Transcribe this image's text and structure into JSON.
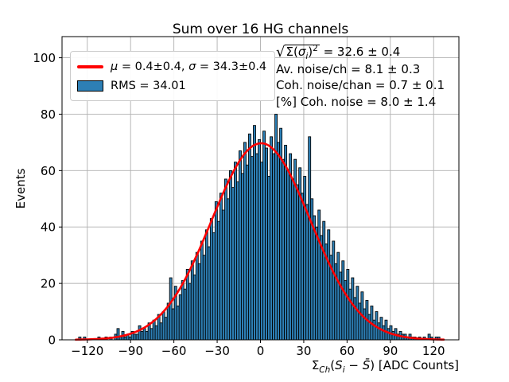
{
  "title": "Sum over 16 HG channels",
  "axes": {
    "ylabel": "Events",
    "xlabel": {
      "sigma": "Σ",
      "ch": "Ch",
      "open": "(",
      "s1": "S",
      "i": "i",
      "minus": " − ",
      "s2": "S̄",
      "rest": ") [ADC Counts]"
    },
    "xlabel_text": "Σ_Ch(S_i − S̄) [ADC Counts]"
  },
  "legend": {
    "fit": {
      "mu": "μ",
      "mu_val": " = 0.4±0.4, ",
      "sigma": "σ",
      "sigma_val": " = 34.3±0.4"
    },
    "fit_text": "μ = 0.4±0.4, σ = 34.3±0.4",
    "rms_label": "RMS = 34.01",
    "line_color": "#ff0000",
    "patch_color": "#2d7fb5"
  },
  "stats": {
    "sqrt": {
      "radical": "√",
      "body1": "Σ(",
      "sigma": "σ",
      "sub": "i",
      "close": ")",
      "sup": "2",
      "value": " = 32.6 ± 0.4"
    },
    "line1_text": "√Σ(σi)² = 32.6 ± 0.4",
    "line2": "Av. noise/ch = 8.1 ± 0.3",
    "line3": "Coh. noise/chan = 0.7 ± 0.1",
    "line4": "[%] Coh. noise = 8.0 ± 1.4"
  },
  "chart_data": {
    "type": "bar",
    "subtype": "histogram-with-gaussian-fit",
    "title": "Sum over 16 HG channels",
    "xlabel": "Σ_Ch(S_i − S̄) [ADC Counts]",
    "ylabel": "Events",
    "xlim": [
      -137.5,
      137.5
    ],
    "ylim": [
      0,
      107.5
    ],
    "xticks": [
      -120,
      -90,
      -60,
      -30,
      0,
      30,
      60,
      90,
      120
    ],
    "yticks": [
      0,
      20,
      40,
      60,
      80,
      100
    ],
    "grid": true,
    "grid_color": "#b0b0b0",
    "bar_color": "#2d7fb5",
    "bar_edge_color": "#000000",
    "curve_color": "#ff0000",
    "gauss_fit": {
      "amplitude": 69.7,
      "mu": 0.4,
      "sigma": 34.3
    },
    "fit_mu": "0.4±0.4",
    "fit_sigma": "34.3±0.4",
    "rms": 34.01,
    "bins": {
      "start": -126,
      "width": 1.658,
      "counts": [
        1,
        0,
        1,
        0,
        0,
        0,
        0,
        0,
        1,
        0,
        0,
        1,
        0,
        1,
        0,
        2,
        4,
        1,
        3,
        1,
        2,
        1,
        3,
        2,
        2,
        5,
        3,
        4,
        3,
        6,
        4,
        7,
        5,
        9,
        6,
        10,
        8,
        13,
        22,
        11,
        19,
        12,
        16,
        21,
        18,
        25,
        20,
        28,
        23,
        31,
        27,
        35,
        30,
        39,
        33,
        43,
        38,
        49,
        42,
        52,
        46,
        57,
        50,
        60,
        54,
        63,
        56,
        67,
        59,
        70,
        62,
        73,
        65,
        76,
        66,
        71,
        63,
        74,
        68,
        58,
        72,
        66,
        80,
        70,
        75,
        64,
        69,
        60,
        66,
        57,
        64,
        55,
        61,
        52,
        58,
        48,
        72,
        50,
        44,
        40,
        46,
        37,
        42,
        34,
        39,
        30,
        35,
        27,
        31,
        24,
        28,
        21,
        25,
        18,
        22,
        15,
        19,
        13,
        17,
        11,
        14,
        9,
        12,
        7,
        10,
        6,
        8,
        5,
        7,
        4,
        5,
        3,
        4,
        2,
        3,
        2,
        2,
        1,
        2,
        1,
        1,
        0,
        1,
        0,
        1,
        0,
        2,
        1,
        0,
        1,
        1,
        0
      ]
    },
    "annotations": [
      "√Σ(σi)² = 32.6 ± 0.4",
      "Av. noise/ch = 8.1 ± 0.3",
      "Coh. noise/chan = 0.7 ± 0.1",
      "[%] Coh. noise = 8.0 ± 1.4"
    ],
    "legend_entries": [
      "μ = 0.4±0.4, σ = 34.3±0.4",
      "RMS = 34.01"
    ],
    "legend_position": "upper-left"
  }
}
